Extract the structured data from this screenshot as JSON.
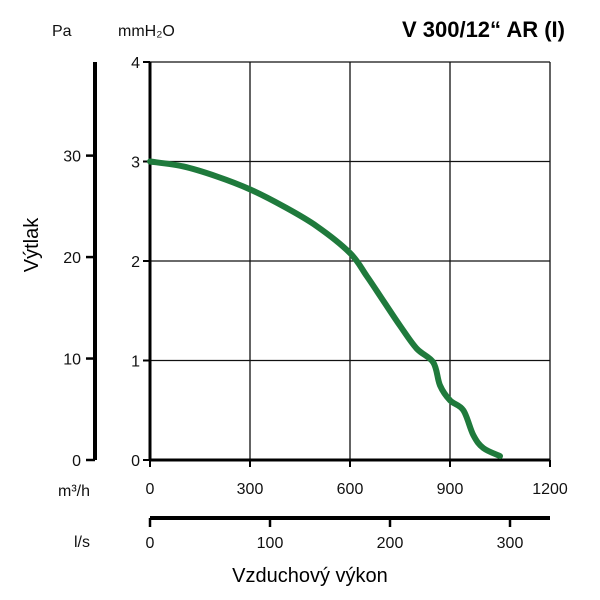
{
  "chart_data": {
    "type": "line",
    "title": "V 300/12“ AR (I)",
    "ylabel": "Výtlak",
    "xlabel": "Vzduchový výkon",
    "x_unit_primary": "m³/h",
    "x_unit_secondary": "l/s",
    "y_unit_primary": "mmH₂O",
    "y_unit_secondary": "Pa",
    "xlim": [
      0,
      1200
    ],
    "ylim": [
      0,
      4
    ],
    "x_ticks": [
      "0",
      "300",
      "600",
      "900",
      "1200"
    ],
    "y_ticks": [
      "0",
      "1",
      "2",
      "3",
      "4"
    ],
    "pa_ticks": [
      "0",
      "10",
      "20",
      "30"
    ],
    "ls_ticks": [
      "0",
      "100",
      "200",
      "300"
    ],
    "grid": true,
    "color": "#1f7a3c",
    "series": [
      {
        "x": [
          0,
          100,
          200,
          300,
          400,
          500,
          600,
          650,
          700,
          750,
          800,
          850,
          870,
          900,
          940,
          970,
          1000,
          1050
        ],
        "y": [
          3.0,
          2.95,
          2.85,
          2.72,
          2.55,
          2.35,
          2.08,
          1.85,
          1.6,
          1.35,
          1.12,
          0.98,
          0.75,
          0.6,
          0.5,
          0.25,
          0.12,
          0.04
        ]
      }
    ]
  }
}
